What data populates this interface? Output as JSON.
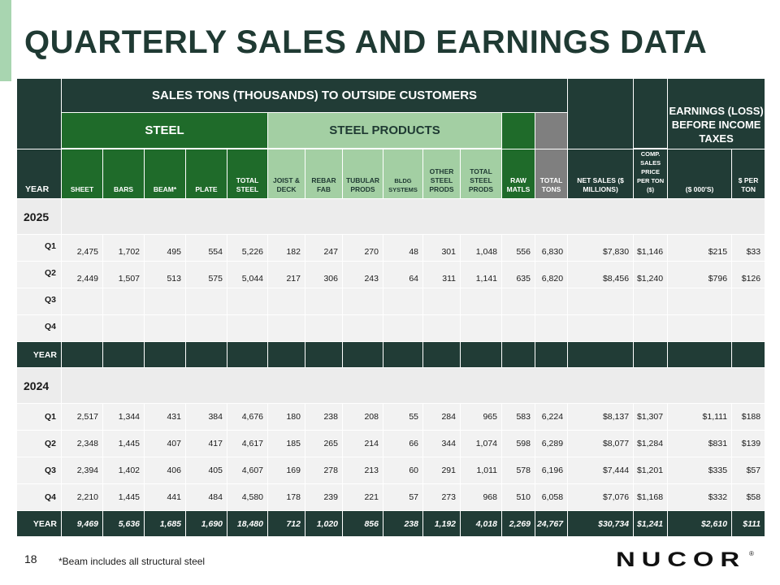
{
  "title": "QUARTERLY SALES AND EARNINGS DATA",
  "header": {
    "sales_tons": "SALES TONS (THOUSANDS) TO OUTSIDE CUSTOMERS",
    "steel": "STEEL",
    "steel_products": "STEEL PRODUCTS",
    "earnings": "EARNINGS (LOSS) BEFORE INCOME TAXES",
    "columns": {
      "year": "YEAR",
      "sheet": "SHEET",
      "bars": "BARS",
      "beam": "BEAM*",
      "plate": "PLATE",
      "total_steel": "TOTAL STEEL",
      "joist_deck": "JOIST & DECK",
      "rebar_fab": "REBAR FAB",
      "tubular_prods": "TUBULAR PRODS",
      "bldg_systems": "BLDG SYSTEMS",
      "other_steel_prods": "OTHER STEEL PRODS",
      "total_steel_prods": "TOTAL STEEL PRODS",
      "raw_matls": "RAW MATLS",
      "total_tons": "TOTAL TONS",
      "net_sales": "NET SALES ($ MILLIONS)",
      "comp_sales_price": "COMP. SALES PRICE PER TON ($)",
      "earnings_000s": "($ 000'S)",
      "per_ton": "$ PER TON"
    }
  },
  "sections": [
    {
      "year": "2025",
      "rows": [
        {
          "q": "Q1",
          "values": [
            "2,475",
            "1,702",
            "495",
            "554",
            "5,226",
            "182",
            "247",
            "270",
            "48",
            "301",
            "1,048",
            "556",
            "6,830",
            "$7,830",
            "$1,146",
            "$215",
            "$33"
          ]
        },
        {
          "q": "Q2",
          "values": [
            "2,449",
            "1,507",
            "513",
            "575",
            "5,044",
            "217",
            "306",
            "243",
            "64",
            "311",
            "1,141",
            "635",
            "6,820",
            "$8,456",
            "$1,240",
            "$796",
            "$126"
          ]
        },
        {
          "q": "Q3",
          "values": [
            "",
            "",
            "",
            "",
            "",
            "",
            "",
            "",
            "",
            "",
            "",
            "",
            "",
            "",
            "",
            "",
            ""
          ]
        },
        {
          "q": "Q4",
          "values": [
            "",
            "",
            "",
            "",
            "",
            "",
            "",
            "",
            "",
            "",
            "",
            "",
            "",
            "",
            "",
            "",
            ""
          ]
        }
      ],
      "total": {
        "q": "YEAR",
        "values": [
          "",
          "",
          "",
          "",
          "",
          "",
          "",
          "",
          "",
          "",
          "",
          "",
          "",
          "",
          "",
          "",
          ""
        ]
      }
    },
    {
      "year": "2024",
      "rows": [
        {
          "q": "Q1",
          "values": [
            "2,517",
            "1,344",
            "431",
            "384",
            "4,676",
            "180",
            "238",
            "208",
            "55",
            "284",
            "965",
            "583",
            "6,224",
            "$8,137",
            "$1,307",
            "$1,111",
            "$188"
          ]
        },
        {
          "q": "Q2",
          "values": [
            "2,348",
            "1,445",
            "407",
            "417",
            "4,617",
            "185",
            "265",
            "214",
            "66",
            "344",
            "1,074",
            "598",
            "6,289",
            "$8,077",
            "$1,284",
            "$831",
            "$139"
          ]
        },
        {
          "q": "Q3",
          "values": [
            "2,394",
            "1,402",
            "406",
            "405",
            "4,607",
            "169",
            "278",
            "213",
            "60",
            "291",
            "1,011",
            "578",
            "6,196",
            "$7,444",
            "$1,201",
            "$335",
            "$57"
          ]
        },
        {
          "q": "Q4",
          "values": [
            "2,210",
            "1,445",
            "441",
            "484",
            "4,580",
            "178",
            "239",
            "221",
            "57",
            "273",
            "968",
            "510",
            "6,058",
            "$7,076",
            "$1,168",
            "$332",
            "$58"
          ]
        }
      ],
      "total": {
        "q": "YEAR",
        "values": [
          "9,469",
          "5,636",
          "1,685",
          "1,690",
          "18,480",
          "712",
          "1,020",
          "856",
          "238",
          "1,192",
          "4,018",
          "2,269",
          "24,767",
          "$30,734",
          "$1,241",
          "$2,610",
          "$111"
        ]
      }
    }
  ],
  "footer": {
    "page_number": "18",
    "note": "*Beam includes all structural steel",
    "logo_text": "NUCOR",
    "logo_mark": "®"
  },
  "colors": {
    "dark": "#213c36",
    "steel_green": "#1f6b2a",
    "products_green": "#a3cfa3",
    "gray": "#7f7f7f",
    "row_bg": "#f2f2f2",
    "accent": "#a8d5b0"
  }
}
